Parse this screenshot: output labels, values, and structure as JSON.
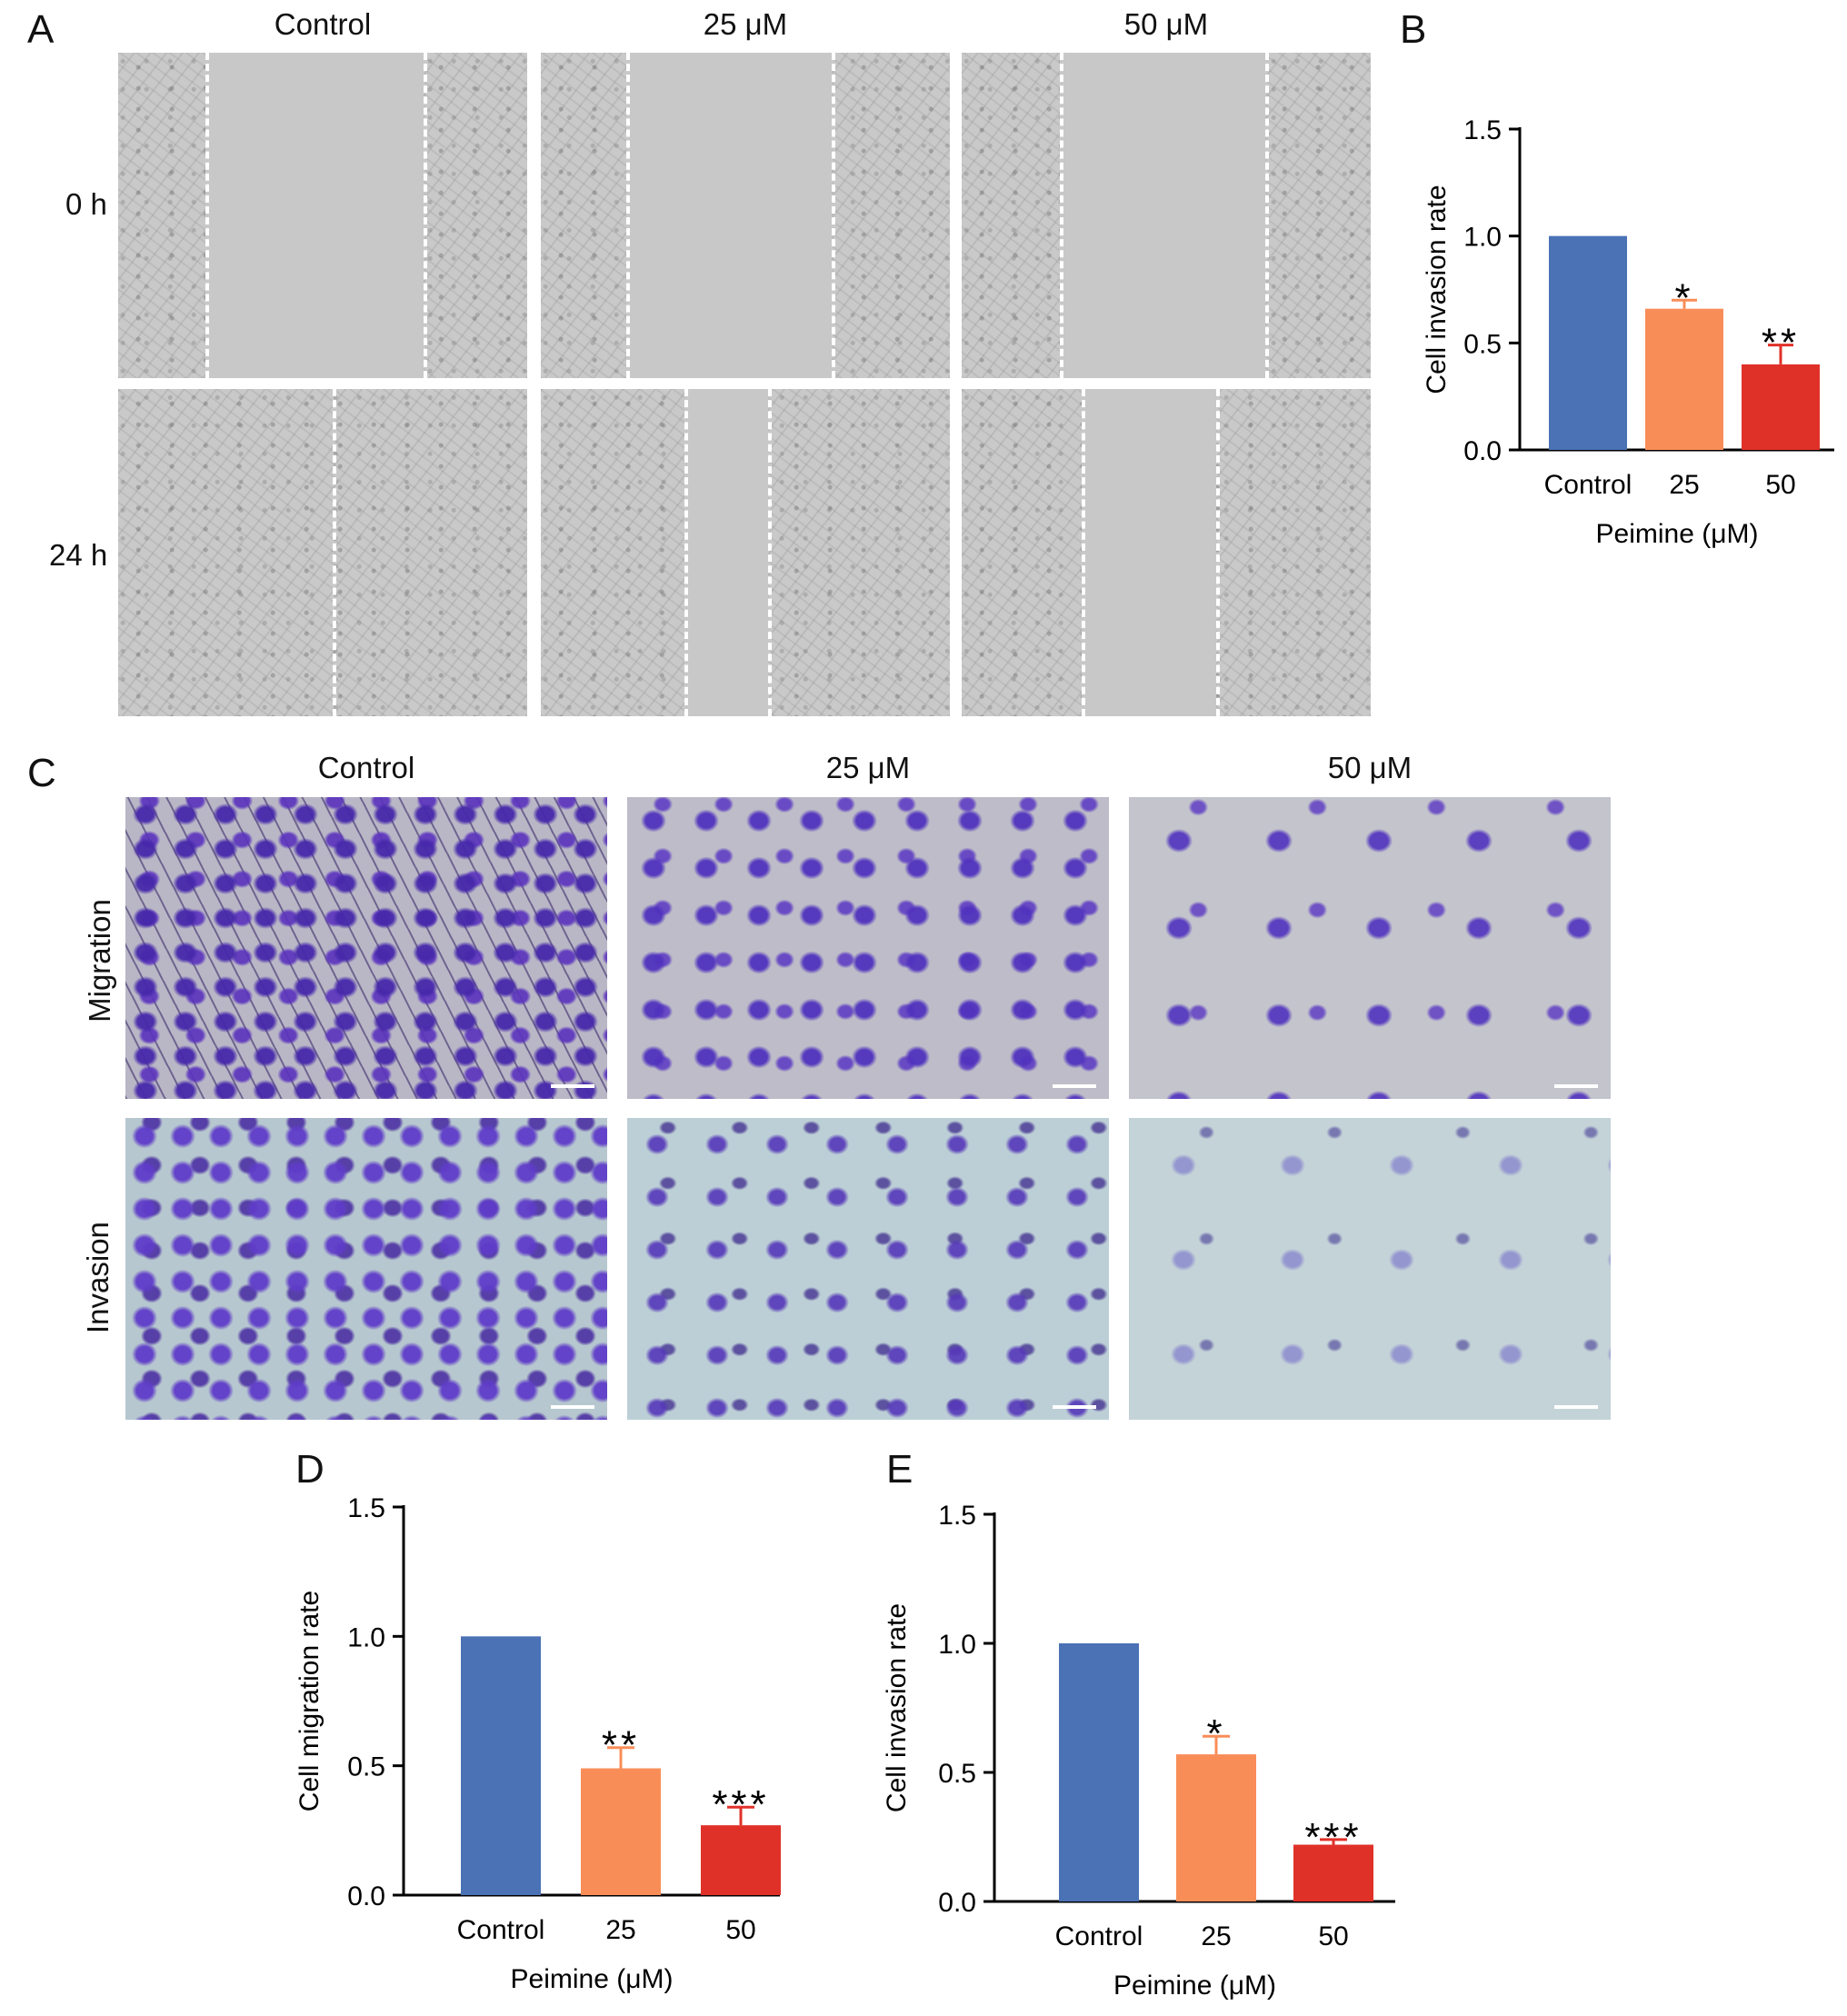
{
  "panelA": {
    "label": "A",
    "columns": [
      "Control",
      "25 μM",
      "50 μM"
    ],
    "rows": [
      "0 h",
      "24 h"
    ]
  },
  "panelC": {
    "label": "C",
    "columns": [
      "Control",
      "25 μM",
      "50 μM"
    ],
    "rows": [
      "Migration",
      "Invasion"
    ]
  },
  "colors": {
    "control": "#4a72b5",
    "dose25": "#f98d58",
    "dose50": "#e03128"
  },
  "chart_data": [
    {
      "panel": "B",
      "type": "bar",
      "categories": [
        "Control",
        "25",
        "50"
      ],
      "values": [
        1.0,
        0.66,
        0.4
      ],
      "errors": [
        0,
        0.04,
        0.09
      ],
      "significance": [
        "",
        "*",
        "**"
      ],
      "xlabel": "Peimine (μM)",
      "ylabel": "Cell invasion rate",
      "ylim": [
        0,
        1.5
      ],
      "yticks": [
        "0.0",
        "0.5",
        "1.0",
        "1.5"
      ]
    },
    {
      "panel": "D",
      "type": "bar",
      "categories": [
        "Control",
        "25",
        "50"
      ],
      "values": [
        1.0,
        0.49,
        0.27
      ],
      "errors": [
        0,
        0.08,
        0.07
      ],
      "significance": [
        "",
        "**",
        "***"
      ],
      "xlabel": "Peimine (μM)",
      "ylabel": "Cell migration rate",
      "ylim": [
        0,
        1.5
      ],
      "yticks": [
        "0.0",
        "0.5",
        "1.0",
        "1.5"
      ]
    },
    {
      "panel": "E",
      "type": "bar",
      "categories": [
        "Control",
        "25",
        "50"
      ],
      "values": [
        1.0,
        0.57,
        0.22
      ],
      "errors": [
        0,
        0.07,
        0.02
      ],
      "significance": [
        "",
        "*",
        "***"
      ],
      "xlabel": "Peimine (μM)",
      "ylabel": "Cell invasion rate",
      "ylim": [
        0,
        1.5
      ],
      "yticks": [
        "0.0",
        "0.5",
        "1.0",
        "1.5"
      ]
    }
  ]
}
